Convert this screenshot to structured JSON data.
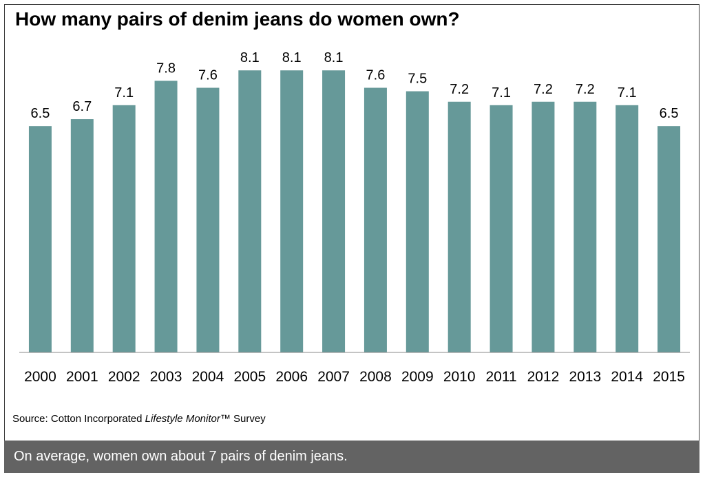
{
  "chart_data": {
    "type": "bar",
    "title": "How many pairs of denim jeans do women own?",
    "categories": [
      "2000",
      "2001",
      "2002",
      "2003",
      "2004",
      "2005",
      "2006",
      "2007",
      "2008",
      "2009",
      "2010",
      "2011",
      "2012",
      "2013",
      "2014",
      "2015"
    ],
    "values": [
      6.5,
      6.7,
      7.1,
      7.8,
      7.6,
      8.1,
      8.1,
      8.1,
      7.6,
      7.5,
      7.2,
      7.1,
      7.2,
      7.2,
      7.1,
      6.5
    ],
    "value_labels": [
      "6.5",
      "6.7",
      "7.1",
      "7.8",
      "7.6",
      "8.1",
      "8.1",
      "8.1",
      "7.6",
      "7.5",
      "7.2",
      "7.1",
      "7.2",
      "7.2",
      "7.1",
      "6.5"
    ],
    "xlabel": "",
    "ylabel": "",
    "ylim": [
      0,
      8.5
    ],
    "grid": false,
    "bar_color": "#669999"
  },
  "source": {
    "prefix": "Source: Cotton Incorporated ",
    "italic": "Lifestyle Monitor",
    "suffix": "™ Survey"
  },
  "footer": {
    "text": "On average, women own about 7 pairs of denim jeans."
  }
}
